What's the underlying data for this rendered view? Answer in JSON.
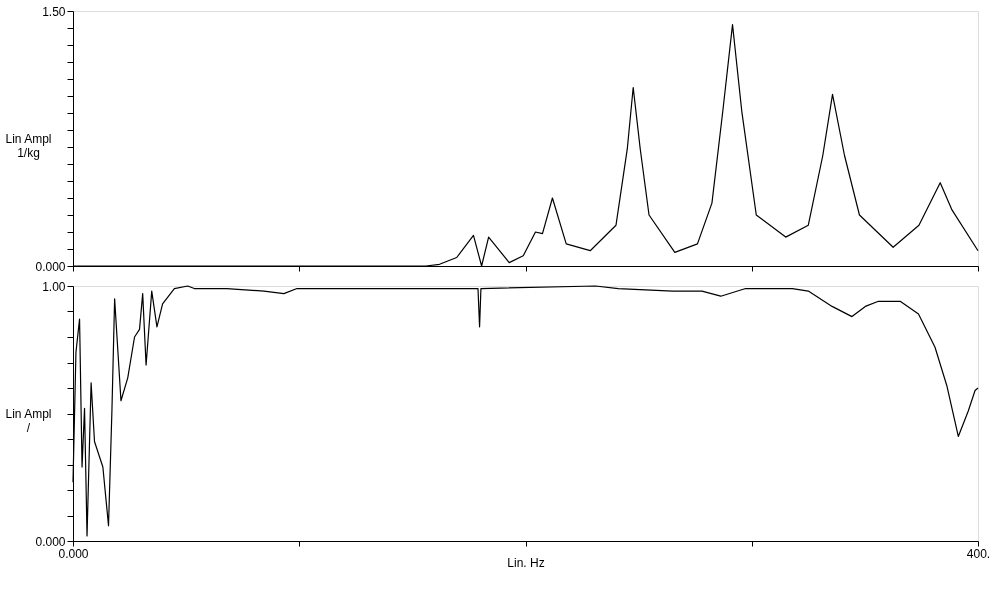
{
  "chart_data": [
    {
      "type": "line",
      "ylabel": "Lin Ampl\n1/kg",
      "tick_labels": "y",
      "grid": false,
      "marker": "none",
      "line_style": "solid",
      "xlim": [
        0,
        400
      ],
      "ylim": [
        0,
        1.5
      ],
      "xticks": [
        {
          "value": 0,
          "label": null
        },
        {
          "value": 100,
          "label": null
        },
        {
          "value": 200,
          "label": null
        },
        {
          "value": 300,
          "label": null
        },
        {
          "value": 400,
          "label": null
        }
      ],
      "yticks": [
        {
          "value": 0,
          "label": "0.000"
        },
        {
          "value": 0.1,
          "label": null
        },
        {
          "value": 0.2,
          "label": null
        },
        {
          "value": 0.3,
          "label": null
        },
        {
          "value": 0.4,
          "label": null
        },
        {
          "value": 0.5,
          "label": null
        },
        {
          "value": 0.6,
          "label": null
        },
        {
          "value": 0.7,
          "label": null
        },
        {
          "value": 0.8,
          "label": null
        },
        {
          "value": 0.9,
          "label": null
        },
        {
          "value": 1.0,
          "label": null
        },
        {
          "value": 1.1,
          "label": null
        },
        {
          "value": 1.2,
          "label": null
        },
        {
          "value": 1.3,
          "label": null
        },
        {
          "value": 1.4,
          "label": null
        },
        {
          "value": 1.5,
          "label": "1.50"
        }
      ],
      "series": [
        {
          "color": "#000000",
          "x": [
            0,
            156,
            162,
            169.6,
            177,
            180.6,
            183.7,
            192.8,
            199,
            204.4,
            207.5,
            211.9,
            218,
            228.6,
            240,
            245,
            247.6,
            250.7,
            254.6,
            266,
            276,
            282.4,
            287.2,
            291.5,
            295.6,
            302,
            315,
            325,
            331.4,
            335.7,
            341,
            347.6,
            362.5,
            373.9,
            383.3,
            388.5,
            400
          ],
          "values": [
            0,
            0,
            0.01,
            0.05,
            0.18,
            0.0,
            0.17,
            0.02,
            0.06,
            0.2,
            0.19,
            0.4,
            0.13,
            0.09,
            0.24,
            0.69,
            1.05,
            0.69,
            0.3,
            0.08,
            0.13,
            0.37,
            0.91,
            1.42,
            0.91,
            0.3,
            0.17,
            0.24,
            0.65,
            1.01,
            0.65,
            0.3,
            0.11,
            0.24,
            0.49,
            0.33,
            0.09
          ]
        }
      ]
    },
    {
      "type": "line",
      "ylabel": "Lin Ampl\n/",
      "xlabel": "Lin. Hz",
      "grid": false,
      "marker": "none",
      "line_style": "solid",
      "xlim": [
        0,
        400
      ],
      "ylim": [
        0,
        1.0
      ],
      "xticks": [
        {
          "value": 0,
          "label": "0.000"
        },
        {
          "value": 100,
          "label": null
        },
        {
          "value": 200,
          "label": null
        },
        {
          "value": 300,
          "label": null
        },
        {
          "value": 400,
          "label": "400."
        }
      ],
      "yticks": [
        {
          "value": 0,
          "label": "0.000"
        },
        {
          "value": 0.1,
          "label": null
        },
        {
          "value": 0.2,
          "label": null
        },
        {
          "value": 0.3,
          "label": null
        },
        {
          "value": 0.4,
          "label": null
        },
        {
          "value": 0.5,
          "label": null
        },
        {
          "value": 0.6,
          "label": null
        },
        {
          "value": 0.7,
          "label": null
        },
        {
          "value": 0.8,
          "label": null
        },
        {
          "value": 0.9,
          "label": null
        },
        {
          "value": 1.0,
          "label": "1.00"
        }
      ],
      "series": [
        {
          "color": "#000000",
          "x": [
            0,
            1.3,
            2.9,
            4,
            5.1,
            6.2,
            8,
            9.5,
            13.2,
            15.7,
            17.2,
            18.4,
            21.2,
            24.2,
            27.2,
            29.4,
            30.8,
            32.3,
            34.8,
            37.1,
            39.6,
            44.8,
            50.7,
            53.6,
            68,
            84.4,
            93.2,
            99,
            179,
            179.7,
            180.3,
            231,
            241,
            265,
            278,
            286.3,
            297.3,
            318,
            325,
            335.5,
            344.3,
            350.2,
            356,
            365.6,
            373.7,
            381,
            386.2,
            391.3,
            395.7,
            398.7,
            400
          ],
          "values": [
            0.23,
            0.74,
            0.87,
            0.29,
            0.52,
            0.02,
            0.62,
            0.39,
            0.29,
            0.06,
            0.51,
            0.95,
            0.55,
            0.64,
            0.8,
            0.83,
            0.97,
            0.69,
            0.98,
            0.84,
            0.93,
            0.99,
            1.0,
            0.99,
            0.99,
            0.98,
            0.97,
            0.99,
            0.99,
            0.84,
            0.99,
            1.0,
            0.99,
            0.98,
            0.98,
            0.96,
            0.99,
            0.99,
            0.98,
            0.92,
            0.88,
            0.92,
            0.94,
            0.94,
            0.89,
            0.76,
            0.61,
            0.41,
            0.51,
            0.59,
            0.6
          ]
        }
      ]
    }
  ]
}
